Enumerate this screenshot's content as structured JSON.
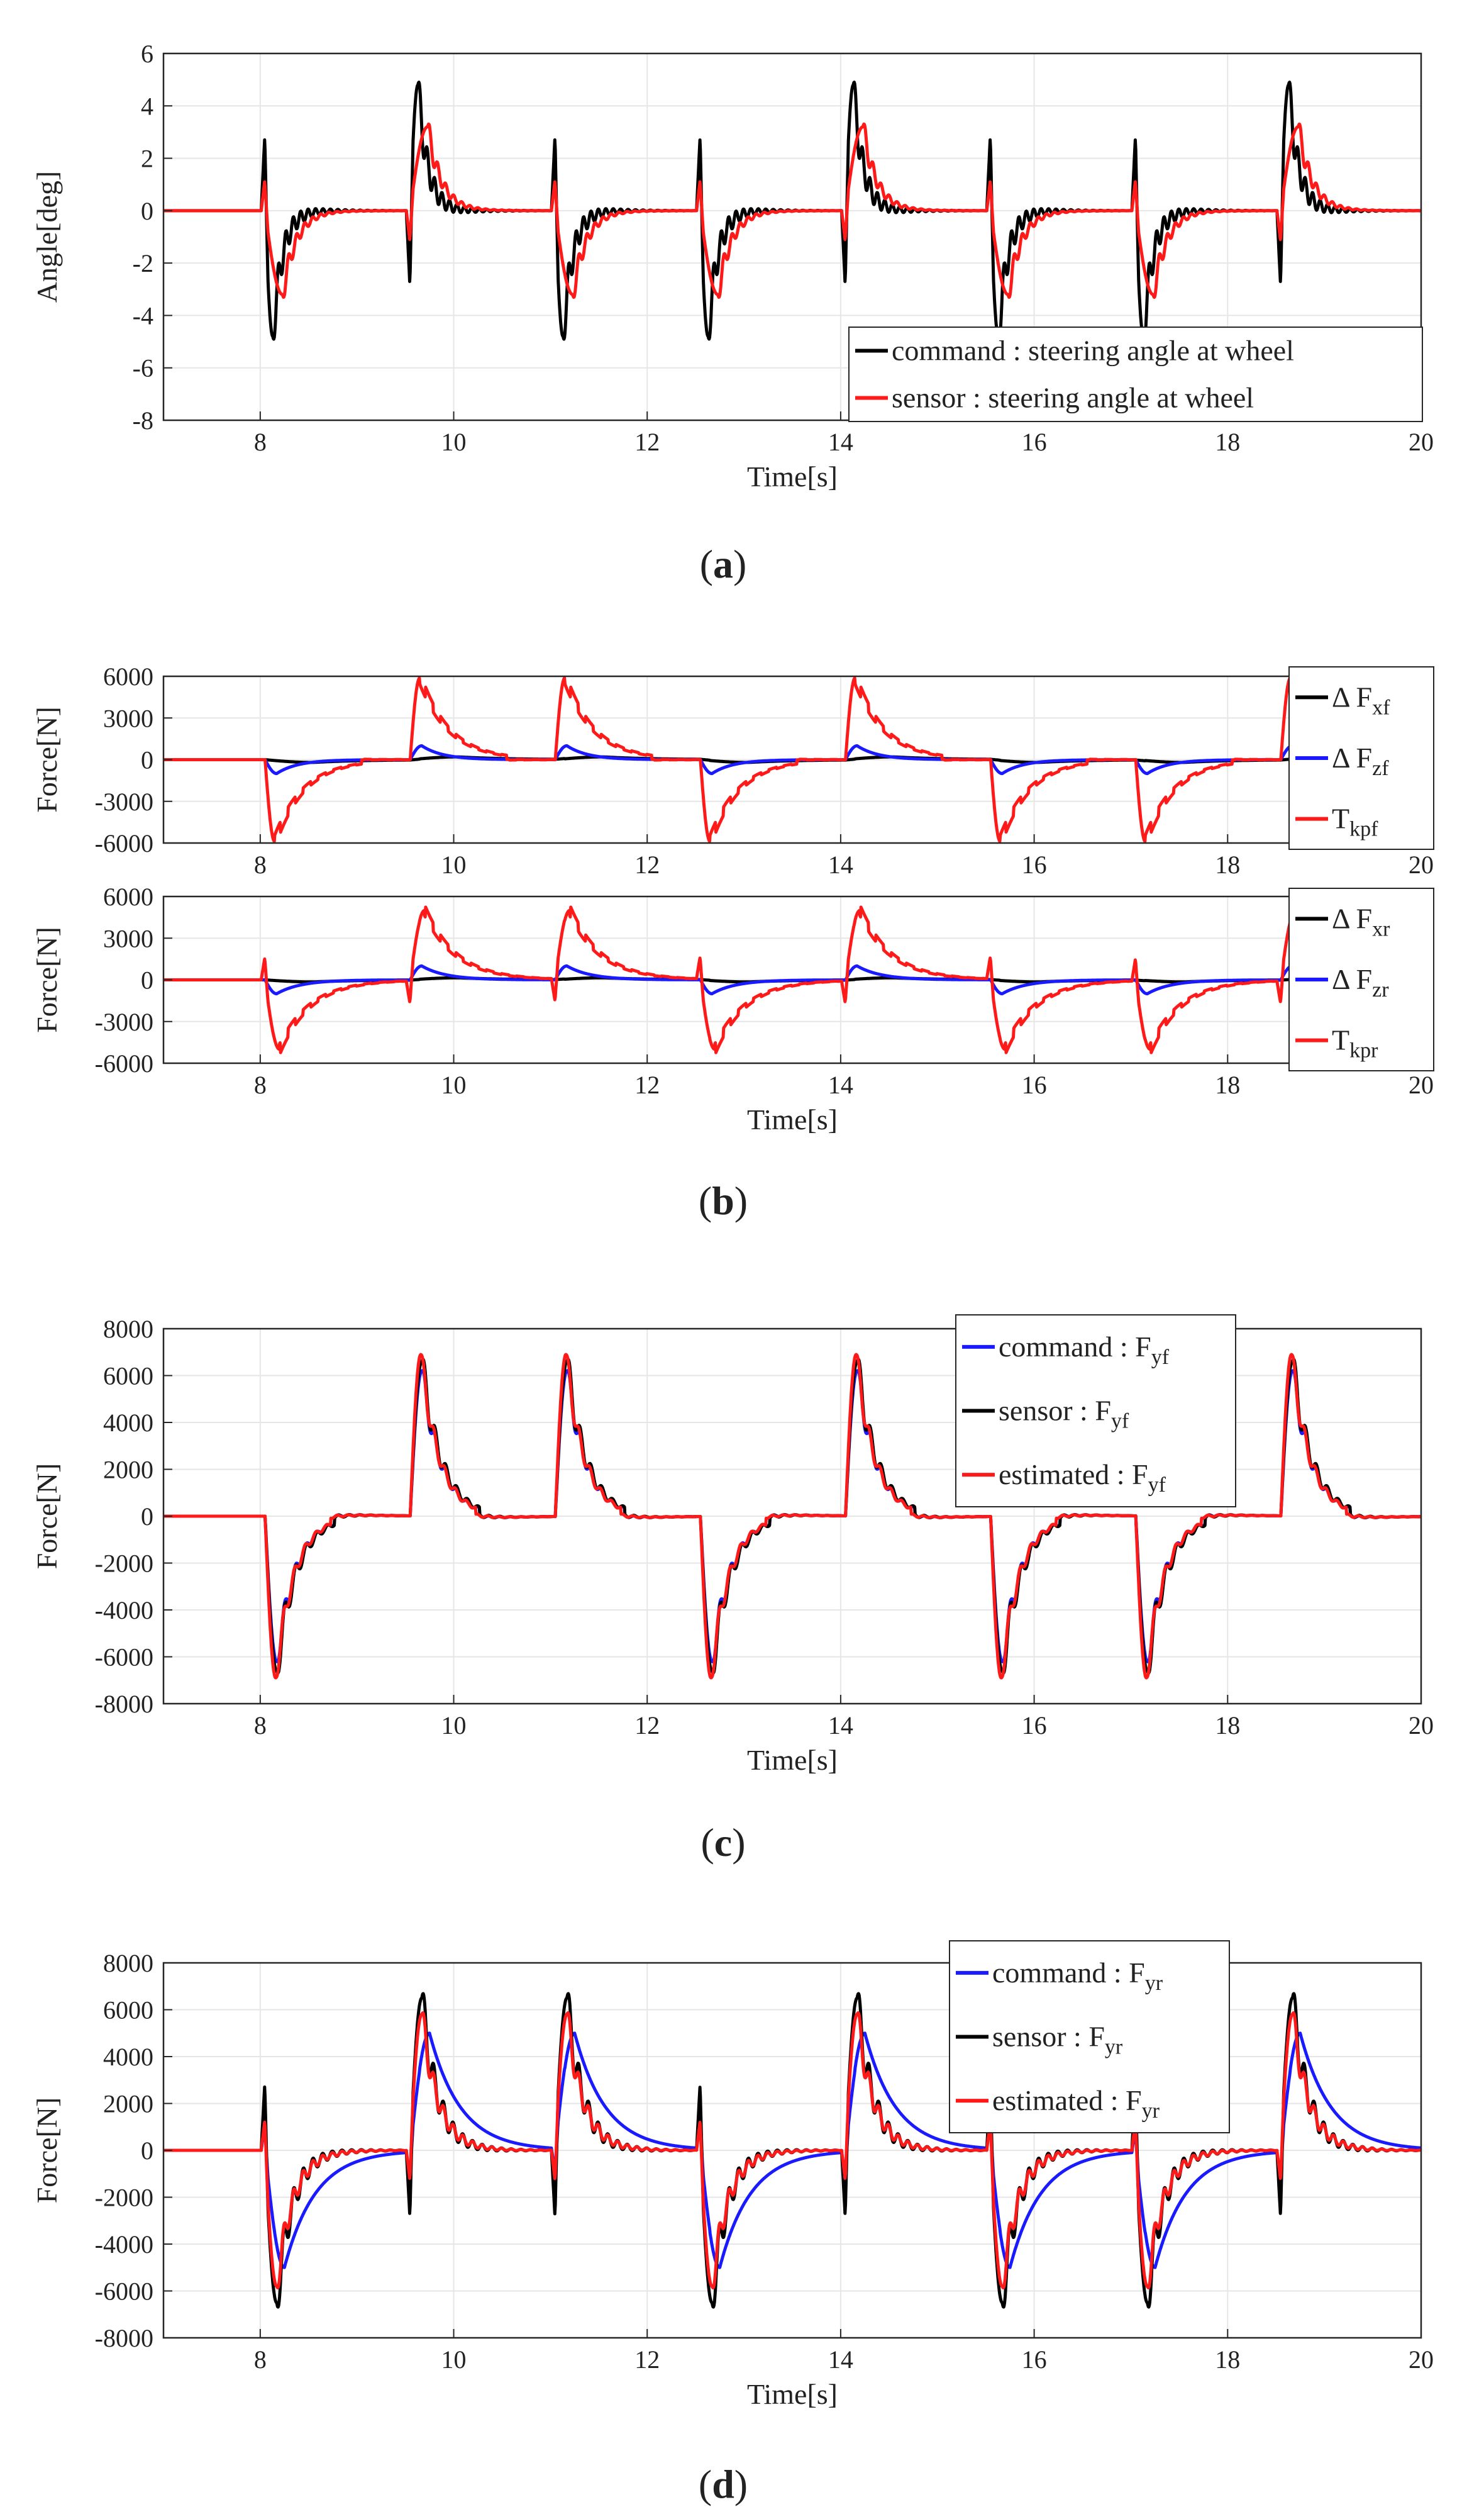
{
  "figure_labels": {
    "a_open": "(",
    "a_letter": "a",
    "a_close": ")",
    "b_open": "(",
    "b_letter": "b",
    "b_close": ")",
    "c_open": "(",
    "c_letter": "c",
    "c_close": ")",
    "d_open": "(",
    "d_letter": "d",
    "d_close": ")"
  },
  "colors": {
    "black": "#000000",
    "red": "#ff1a1a",
    "blue": "#1a1aff",
    "grid": "#e6e6e6",
    "axis": "#262626"
  },
  "chart_data": [
    {
      "id": "a",
      "type": "line",
      "xlabel": "Time[s]",
      "ylabel": "Angle[deg]",
      "xlim": [
        7,
        20
      ],
      "ylim": [
        -8,
        6
      ],
      "xticks": [
        8,
        10,
        12,
        14,
        16,
        18,
        20
      ],
      "yticks": [
        -8,
        -6,
        -4,
        -2,
        0,
        2,
        4,
        6
      ],
      "ytick_labels": [
        "-8",
        "-6",
        "-4",
        "-2",
        "0",
        "2",
        "4",
        "6"
      ],
      "grid": true,
      "legend_position": "bottom-right",
      "series": [
        {
          "name": "command : steering angle at wheel",
          "color": "#000000",
          "events": [
            [
              8.05,
              -1
            ],
            [
              9.55,
              1
            ],
            [
              11.05,
              -1
            ],
            [
              12.55,
              -1
            ],
            [
              14.05,
              1
            ],
            [
              15.55,
              -1
            ],
            [
              17.05,
              -1
            ],
            [
              18.55,
              1
            ]
          ],
          "shape": {
            "pre": -2.7,
            "peak": 4.8,
            "tpeak": 0.08,
            "tau": 0.1,
            "ring": 0.8,
            "ringFreq": 13,
            "ringTau": 0.25,
            "tail": 0.0
          }
        },
        {
          "name": "sensor : steering angle at wheel",
          "color": "#ff1a1a",
          "events": [
            [
              8.05,
              -1
            ],
            [
              9.55,
              1
            ],
            [
              11.05,
              -1
            ],
            [
              12.55,
              -1
            ],
            [
              14.05,
              1
            ],
            [
              15.55,
              -1
            ],
            [
              17.05,
              -1
            ],
            [
              18.55,
              1
            ]
          ],
          "shape": {
            "pre": -1.1,
            "peak": 3.2,
            "tpeak": 0.18,
            "tau": 0.14,
            "ring": 0.5,
            "ringFreq": 12,
            "ringTau": 0.2,
            "tail": 0.0
          }
        }
      ]
    },
    {
      "id": "b1",
      "type": "line",
      "xlabel": "",
      "ylabel": "Force[N]",
      "xlim": [
        7,
        20
      ],
      "ylim": [
        -6000,
        6000
      ],
      "xticks": [
        8,
        10,
        12,
        14,
        16,
        18,
        20
      ],
      "yticks": [
        -6000,
        -3000,
        0,
        3000,
        6000
      ],
      "ytick_labels": [
        "-6000",
        "-3000",
        "0",
        "3000",
        "6000"
      ],
      "grid": true,
      "legend_position": "right-outside",
      "series": [
        {
          "name": "Δ F",
          "sub": "xf",
          "color": "#000000",
          "events": [
            [
              8.05,
              -1
            ],
            [
              9.55,
              1
            ],
            [
              11.05,
              1
            ],
            [
              12.55,
              -1
            ],
            [
              14.05,
              1
            ],
            [
              15.55,
              -1
            ],
            [
              17.05,
              -1
            ],
            [
              18.55,
              1
            ]
          ],
          "shape": {
            "pre": 0,
            "peak": 200,
            "tpeak": 0.5,
            "tau": 0.5,
            "ring": 0,
            "ringFreq": 0,
            "ringTau": 1,
            "tail": 0
          }
        },
        {
          "name": "Δ F",
          "sub": "zf",
          "color": "#1a1aff",
          "events": [
            [
              8.05,
              -1
            ],
            [
              9.55,
              1
            ],
            [
              11.05,
              1
            ],
            [
              12.55,
              -1
            ],
            [
              14.05,
              1
            ],
            [
              15.55,
              -1
            ],
            [
              17.05,
              -1
            ],
            [
              18.55,
              1
            ]
          ],
          "shape": {
            "pre": 0,
            "peak": 1000,
            "tpeak": 0.12,
            "tau": 0.22,
            "ring": 0,
            "ringFreq": 0,
            "ringTau": 1,
            "tail": 0
          }
        },
        {
          "name": "T",
          "sub": "kpf",
          "color": "#ff1a1a",
          "events": [
            [
              8.05,
              -1
            ],
            [
              9.55,
              1
            ],
            [
              11.05,
              1
            ],
            [
              12.55,
              -1
            ],
            [
              14.05,
              1
            ],
            [
              15.55,
              -1
            ],
            [
              17.05,
              -1
            ],
            [
              18.55,
              1
            ]
          ],
          "shape": {
            "pre": 0,
            "peak": 5900,
            "tpeak": 0.1,
            "tau": 0.3,
            "ring": 0,
            "ringFreq": 0,
            "ringTau": 1,
            "tail": -300,
            "steps": true
          }
        }
      ]
    },
    {
      "id": "b2",
      "type": "line",
      "xlabel": "Time[s]",
      "ylabel": "Force[N]",
      "xlim": [
        7,
        20
      ],
      "ylim": [
        -6000,
        6000
      ],
      "xticks": [
        8,
        10,
        12,
        14,
        16,
        18,
        20
      ],
      "yticks": [
        -6000,
        -3000,
        0,
        3000,
        6000
      ],
      "ytick_labels": [
        "-6000",
        "-3000",
        "0",
        "3000",
        "6000"
      ],
      "grid": true,
      "legend_position": "right-outside",
      "series": [
        {
          "name": "Δ F",
          "sub": "xr",
          "color": "#000000",
          "events": [
            [
              8.05,
              -1
            ],
            [
              9.55,
              1
            ],
            [
              11.05,
              1
            ],
            [
              12.55,
              -1
            ],
            [
              14.05,
              1
            ],
            [
              15.55,
              -1
            ],
            [
              17.05,
              -1
            ],
            [
              18.55,
              1
            ]
          ],
          "shape": {
            "pre": 0,
            "peak": 150,
            "tpeak": 0.5,
            "tau": 0.5,
            "ring": 0,
            "ringFreq": 0,
            "ringTau": 1,
            "tail": 0
          }
        },
        {
          "name": "Δ F",
          "sub": "zr",
          "color": "#1a1aff",
          "events": [
            [
              8.05,
              -1
            ],
            [
              9.55,
              1
            ],
            [
              11.05,
              1
            ],
            [
              12.55,
              -1
            ],
            [
              14.05,
              1
            ],
            [
              15.55,
              -1
            ],
            [
              17.05,
              -1
            ],
            [
              18.55,
              1
            ]
          ],
          "shape": {
            "pre": 0,
            "peak": 1000,
            "tpeak": 0.12,
            "tau": 0.25,
            "ring": 0,
            "ringFreq": 0,
            "ringTau": 1,
            "tail": 0
          }
        },
        {
          "name": "T",
          "sub": "kpr",
          "color": "#ff1a1a",
          "events": [
            [
              8.05,
              -1
            ],
            [
              9.55,
              1
            ],
            [
              11.05,
              1
            ],
            [
              12.55,
              -1
            ],
            [
              14.05,
              1
            ],
            [
              15.55,
              -1
            ],
            [
              17.05,
              -1
            ],
            [
              18.55,
              1
            ]
          ],
          "shape": {
            "pre": -1500,
            "peak": 5000,
            "tpeak": 0.15,
            "tau": 0.32,
            "ring": 0,
            "ringFreq": 0,
            "ringTau": 1,
            "tail": 0,
            "steps": true
          }
        }
      ]
    },
    {
      "id": "c",
      "type": "line",
      "xlabel": "Time[s]",
      "ylabel": "Force[N]",
      "xlim": [
        7,
        20
      ],
      "ylim": [
        -8000,
        8000
      ],
      "xticks": [
        8,
        10,
        12,
        14,
        16,
        18,
        20
      ],
      "yticks": [
        -8000,
        -6000,
        -4000,
        -2000,
        0,
        2000,
        4000,
        6000,
        8000
      ],
      "ytick_labels": [
        "-8000",
        "-6000",
        "-4000",
        "-2000",
        "0",
        "2000",
        "4000",
        "6000",
        "8000"
      ],
      "grid": true,
      "legend_position": "top-right",
      "series": [
        {
          "name": "command : F",
          "sub": "yf",
          "color": "#1a1aff",
          "events": [
            [
              8.05,
              -1
            ],
            [
              9.55,
              1
            ],
            [
              11.05,
              1
            ],
            [
              12.55,
              -1
            ],
            [
              14.05,
              1
            ],
            [
              15.55,
              -1
            ],
            [
              17.05,
              -1
            ],
            [
              18.55,
              1
            ]
          ],
          "shape": {
            "pre": 0,
            "peak": 6200,
            "tpeak": 0.12,
            "tau": 0.2,
            "ring": 600,
            "ringFreq": 9,
            "ringTau": 0.25,
            "tail": -300
          }
        },
        {
          "name": "sensor : F",
          "sub": "yf",
          "color": "#000000",
          "events": [
            [
              8.05,
              -1
            ],
            [
              9.55,
              1
            ],
            [
              11.05,
              1
            ],
            [
              12.55,
              -1
            ],
            [
              14.05,
              1
            ],
            [
              15.55,
              -1
            ],
            [
              17.05,
              -1
            ],
            [
              18.55,
              1
            ]
          ],
          "shape": {
            "pre": 0,
            "peak": 6600,
            "tpeak": 0.12,
            "tau": 0.2,
            "ring": 800,
            "ringFreq": 9,
            "ringTau": 0.25,
            "tail": -300
          }
        },
        {
          "name": "estimated : F",
          "sub": "yf",
          "color": "#ff1a1a",
          "events": [
            [
              8.05,
              -1
            ],
            [
              9.55,
              1
            ],
            [
              11.05,
              1
            ],
            [
              12.55,
              -1
            ],
            [
              14.05,
              1
            ],
            [
              15.55,
              -1
            ],
            [
              17.05,
              -1
            ],
            [
              18.55,
              1
            ]
          ],
          "shape": {
            "pre": 0,
            "peak": 6900,
            "tpeak": 0.11,
            "tau": 0.19,
            "ring": 600,
            "ringFreq": 9,
            "ringTau": 0.25,
            "tail": -300
          }
        }
      ]
    },
    {
      "id": "d",
      "type": "line",
      "xlabel": "Time[s]",
      "ylabel": "Force[N]",
      "xlim": [
        7,
        20
      ],
      "ylim": [
        -8000,
        8000
      ],
      "xticks": [
        8,
        10,
        12,
        14,
        16,
        18,
        20
      ],
      "yticks": [
        -8000,
        -6000,
        -4000,
        -2000,
        0,
        2000,
        4000,
        6000,
        8000
      ],
      "ytick_labels": [
        "-8000",
        "-6000",
        "-4000",
        "-2000",
        "0",
        "2000",
        "4000",
        "6000",
        "8000"
      ],
      "grid": true,
      "legend_position": "top-right",
      "series": [
        {
          "name": "command : F",
          "sub": "yr",
          "color": "#1a1aff",
          "events": [
            [
              8.05,
              -1
            ],
            [
              9.55,
              1
            ],
            [
              11.05,
              1
            ],
            [
              12.55,
              -1
            ],
            [
              14.05,
              1
            ],
            [
              15.55,
              -1
            ],
            [
              17.05,
              -1
            ],
            [
              18.55,
              1
            ]
          ],
          "shape": {
            "pre": -1000,
            "peak": 5000,
            "tpeak": 0.2,
            "tau": 0.32,
            "ring": 0,
            "ringFreq": 0,
            "ringTau": 1,
            "tail": 0
          }
        },
        {
          "name": "sensor : F",
          "sub": "yr",
          "color": "#000000",
          "events": [
            [
              8.05,
              -1
            ],
            [
              9.55,
              1
            ],
            [
              11.05,
              1
            ],
            [
              12.55,
              -1
            ],
            [
              14.05,
              1
            ],
            [
              15.55,
              -1
            ],
            [
              17.05,
              -1
            ],
            [
              18.55,
              1
            ]
          ],
          "shape": {
            "pre": -2700,
            "peak": 6500,
            "tpeak": 0.12,
            "tau": 0.16,
            "ring": 1000,
            "ringFreq": 10,
            "ringTau": 0.3,
            "tail": 0
          }
        },
        {
          "name": "estimated : F",
          "sub": "yr",
          "color": "#ff1a1a",
          "events": [
            [
              8.05,
              -1
            ],
            [
              9.55,
              1
            ],
            [
              11.05,
              1
            ],
            [
              12.55,
              -1
            ],
            [
              14.05,
              1
            ],
            [
              15.55,
              -1
            ],
            [
              17.05,
              -1
            ],
            [
              18.55,
              1
            ]
          ],
          "shape": {
            "pre": -1200,
            "peak": 5800,
            "tpeak": 0.12,
            "tau": 0.17,
            "ring": 700,
            "ringFreq": 10,
            "ringTau": 0.3,
            "tail": 0
          }
        }
      ]
    }
  ]
}
